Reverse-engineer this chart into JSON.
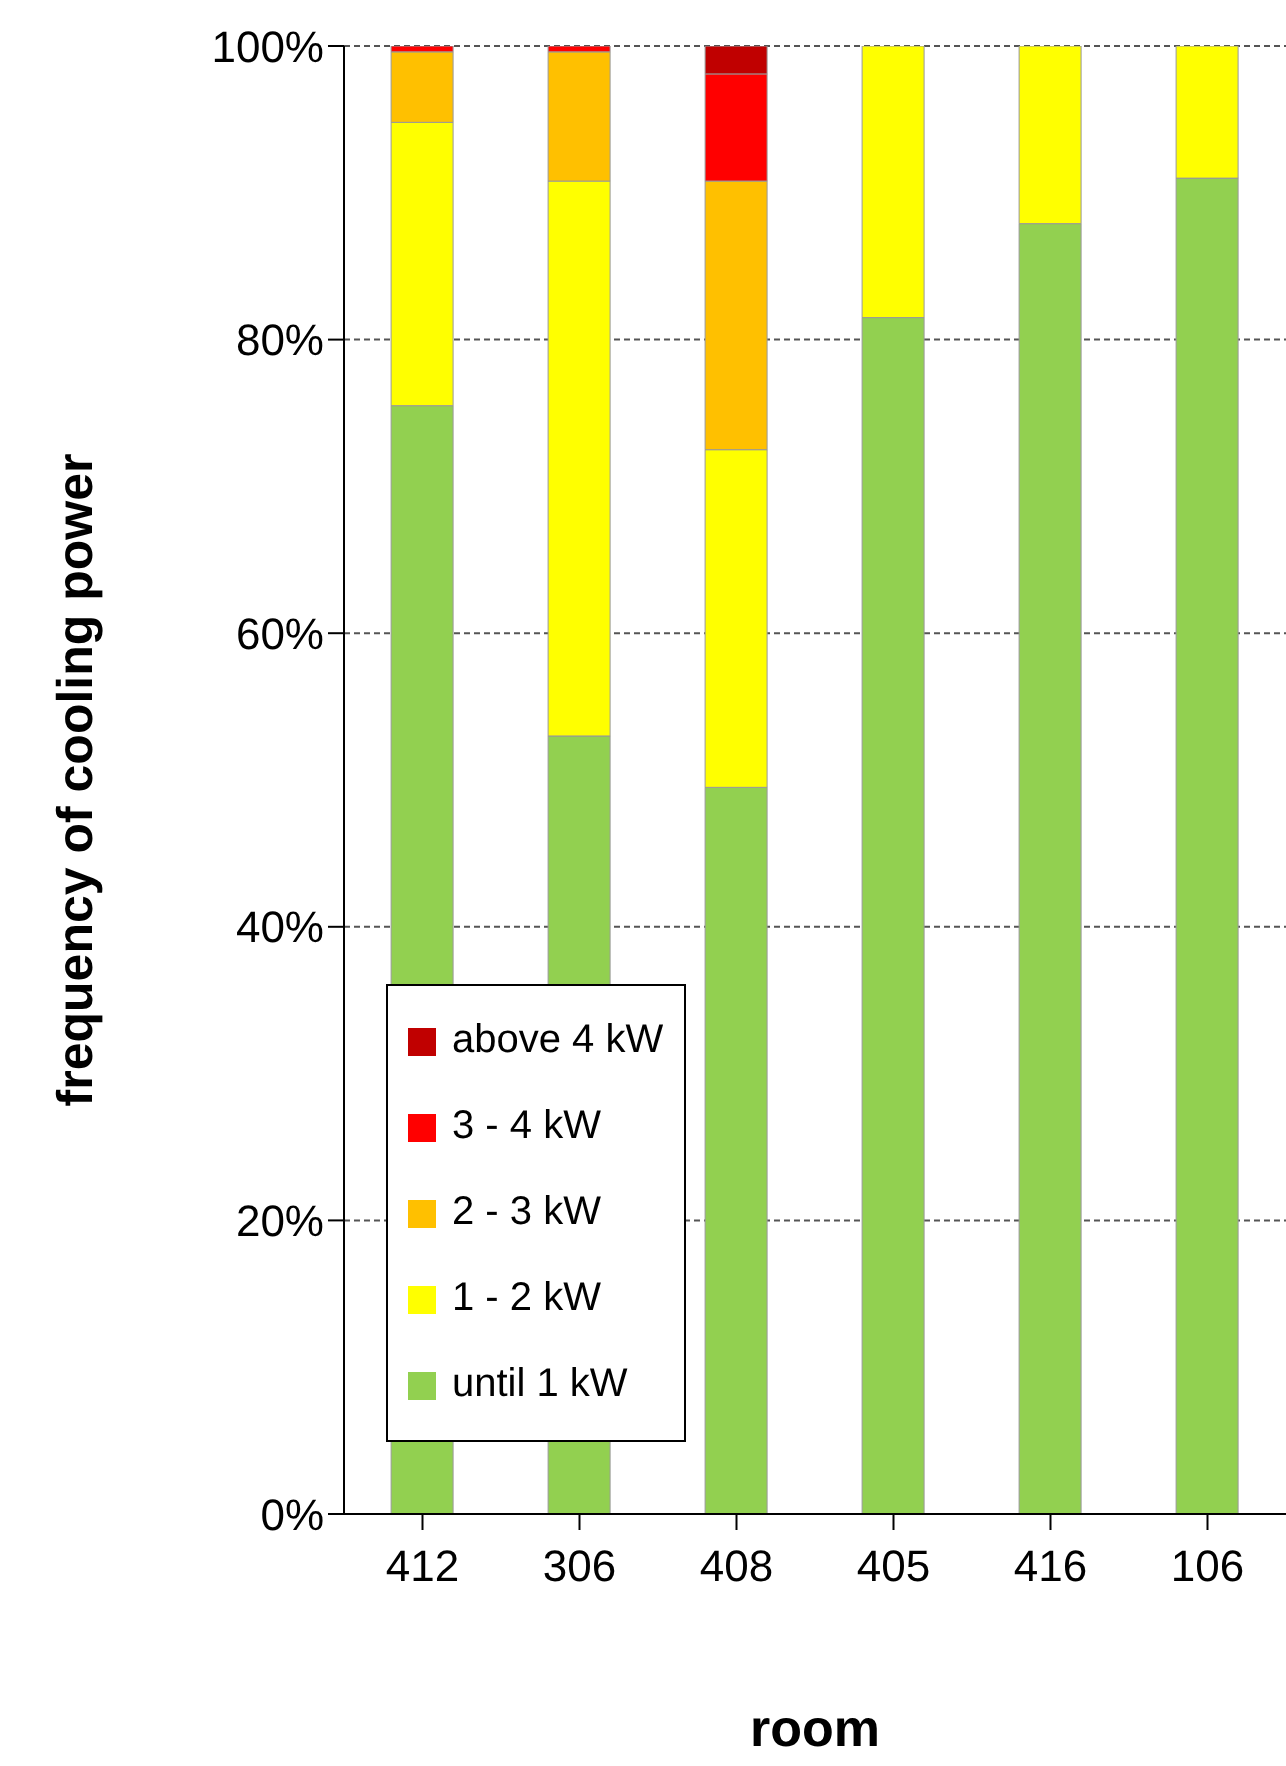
{
  "chart_data": {
    "type": "bar",
    "stacked": true,
    "xlabel": "room",
    "ylabel": "frequency of cooling power",
    "categories": [
      "412",
      "306",
      "408",
      "405",
      "416",
      "106"
    ],
    "series": [
      {
        "name": "until 1 kW",
        "color": "#92d050",
        "values": [
          75.5,
          53,
          49.5,
          81.5,
          87.9,
          91
        ]
      },
      {
        "name": "1 - 2 kW",
        "color": "#ffff00",
        "values": [
          19.3,
          37.8,
          23,
          18.5,
          12.1,
          9
        ]
      },
      {
        "name": "2 - 3 kW",
        "color": "#ffc000",
        "values": [
          4.8,
          8.8,
          18.3,
          0,
          0,
          0
        ]
      },
      {
        "name": "3 - 4 kW",
        "color": "#ff0000",
        "values": [
          0.4,
          0.4,
          7.3,
          0,
          0,
          0
        ]
      },
      {
        "name": "above 4 kW",
        "color": "#c00000",
        "values": [
          0,
          0,
          1.9,
          0,
          0,
          0
        ]
      }
    ],
    "ylim": [
      0,
      100
    ],
    "yticks": [
      {
        "value": 0,
        "label": "0%"
      },
      {
        "value": 20,
        "label": "20%"
      },
      {
        "value": 40,
        "label": "40%"
      },
      {
        "value": 60,
        "label": "60%"
      },
      {
        "value": 80,
        "label": "80%"
      },
      {
        "value": 100,
        "label": "100%"
      }
    ],
    "grid": "y",
    "legend": "bottom left"
  }
}
